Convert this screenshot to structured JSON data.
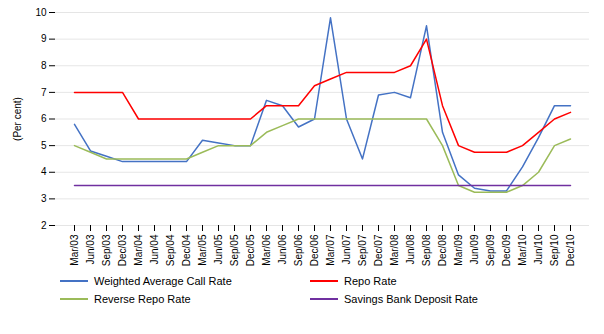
{
  "chart_data": {
    "type": "line",
    "categories": [
      "Mar/03",
      "Jun/03",
      "Sep/03",
      "Dec/03",
      "Mar/04",
      "Jun/04",
      "Sep/04",
      "Dec/04",
      "Mar/05",
      "Jun/05",
      "Sep/05",
      "Dec/05",
      "Mar/06",
      "Jun/06",
      "Sep/06",
      "Dec/06",
      "Mar/07",
      "Jun/07",
      "Sep/07",
      "Dec/07",
      "Mar/08",
      "Jun/08",
      "Sep/08",
      "Dec/08",
      "Mar/09",
      "Jun/09",
      "Sep/09",
      "Dec/09",
      "Mar/10",
      "Jun/10",
      "Sep/10",
      "Dec/10"
    ],
    "series": [
      {
        "name": "Weighted Average Call Rate",
        "color": "#4472C4",
        "values": [
          5.8,
          4.8,
          4.6,
          4.4,
          4.4,
          4.4,
          4.4,
          4.4,
          5.2,
          5.1,
          5.0,
          5.0,
          6.7,
          6.5,
          5.7,
          6.0,
          9.8,
          6.0,
          4.5,
          6.9,
          7.0,
          6.8,
          9.5,
          5.5,
          3.9,
          3.4,
          3.3,
          3.3,
          4.2,
          5.3,
          6.5,
          6.5
        ]
      },
      {
        "name": "Repo Rate",
        "color": "#FF0000",
        "values": [
          7.0,
          7.0,
          7.0,
          7.0,
          6.0,
          6.0,
          6.0,
          6.0,
          6.0,
          6.0,
          6.0,
          6.0,
          6.5,
          6.5,
          6.5,
          7.25,
          7.5,
          7.75,
          7.75,
          7.75,
          7.75,
          8.0,
          9.0,
          6.5,
          5.0,
          4.75,
          4.75,
          4.75,
          5.0,
          5.5,
          6.0,
          6.25
        ]
      },
      {
        "name": "Reverse Repo Rate",
        "color": "#9BBB59",
        "values": [
          5.0,
          4.75,
          4.5,
          4.5,
          4.5,
          4.5,
          4.5,
          4.5,
          4.75,
          5.0,
          5.0,
          5.0,
          5.5,
          5.75,
          6.0,
          6.0,
          6.0,
          6.0,
          6.0,
          6.0,
          6.0,
          6.0,
          6.0,
          5.0,
          3.5,
          3.25,
          3.25,
          3.25,
          3.5,
          4.0,
          5.0,
          5.25
        ]
      },
      {
        "name": "Savings Bank Deposit Rate",
        "color": "#7030A0",
        "values": [
          3.5,
          3.5,
          3.5,
          3.5,
          3.5,
          3.5,
          3.5,
          3.5,
          3.5,
          3.5,
          3.5,
          3.5,
          3.5,
          3.5,
          3.5,
          3.5,
          3.5,
          3.5,
          3.5,
          3.5,
          3.5,
          3.5,
          3.5,
          3.5,
          3.5,
          3.5,
          3.5,
          3.5,
          3.5,
          3.5,
          3.5,
          3.5
        ]
      }
    ],
    "ylabel": "(Per cent)",
    "ylim": [
      2,
      10
    ],
    "yticks": [
      2,
      3,
      4,
      5,
      6,
      7,
      8,
      9,
      10
    ],
    "grid": true,
    "legend": "bottom"
  }
}
